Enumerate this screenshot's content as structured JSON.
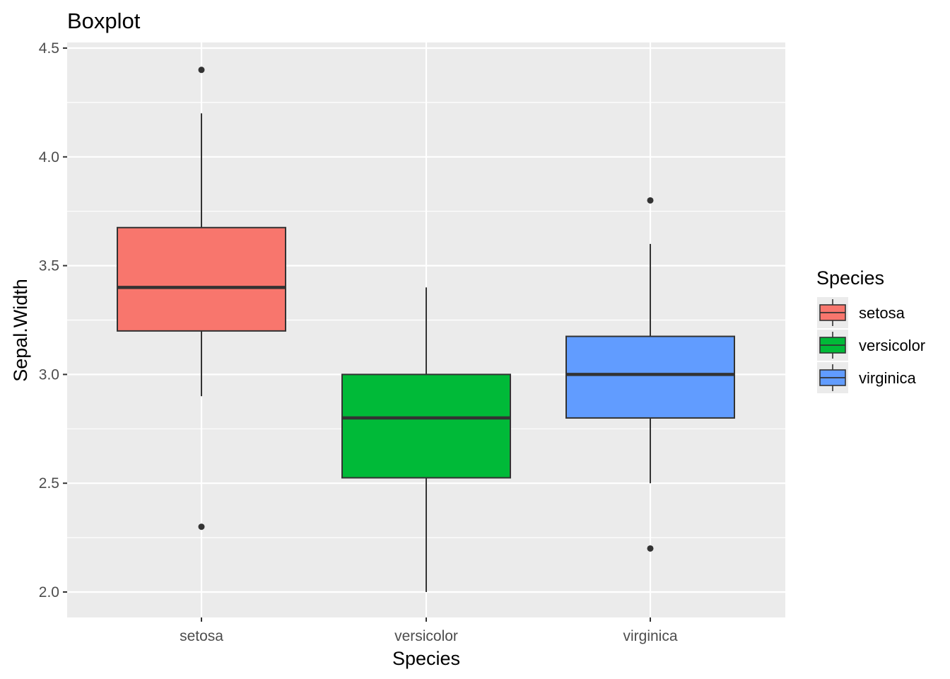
{
  "chart_data": {
    "type": "boxplot",
    "title": "Boxplot",
    "xlabel": "Species",
    "ylabel": "Sepal.Width",
    "ylim": [
      1.9,
      4.5
    ],
    "yticks": [
      "2.0",
      "2.5",
      "3.0",
      "3.5",
      "4.0",
      "4.5"
    ],
    "ytick_values": [
      2.0,
      2.5,
      3.0,
      3.5,
      4.0,
      4.5
    ],
    "categories": [
      "setosa",
      "versicolor",
      "virginica"
    ],
    "grid": true,
    "background": "#ebebeb",
    "legend": {
      "title": "Species",
      "position": "right"
    },
    "series": [
      {
        "name": "setosa",
        "color": "#f8766d",
        "whisker_low": 2.9,
        "q1": 3.2,
        "median": 3.4,
        "q3": 3.675,
        "whisker_high": 4.2,
        "outliers": [
          4.4,
          2.3
        ]
      },
      {
        "name": "versicolor",
        "color": "#00ba38",
        "whisker_low": 2.0,
        "q1": 2.525,
        "median": 2.8,
        "q3": 3.0,
        "whisker_high": 3.4,
        "outliers": []
      },
      {
        "name": "virginica",
        "color": "#619cff",
        "whisker_low": 2.5,
        "q1": 2.8,
        "median": 3.0,
        "q3": 3.175,
        "whisker_high": 3.6,
        "outliers": [
          3.8,
          2.2
        ]
      }
    ]
  }
}
